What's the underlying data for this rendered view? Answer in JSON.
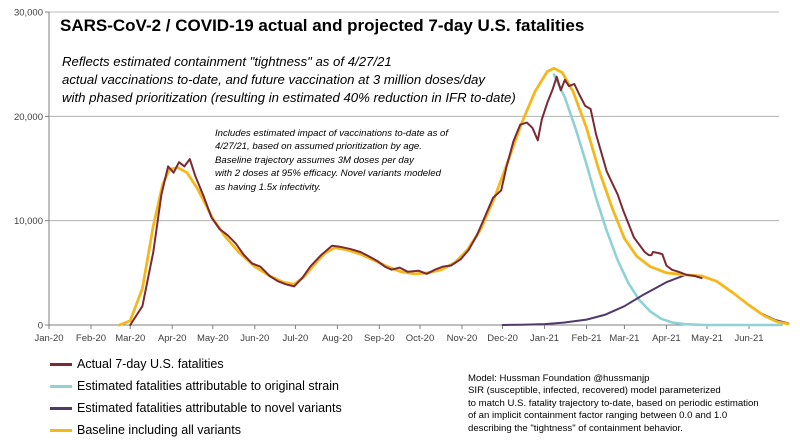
{
  "chart_data": {
    "type": "line",
    "title": "SARS-CoV-2 / COVID-19 actual and projected 7-day U.S. fatalities",
    "subtitle": "Reflects estimated containment \"tightness\" as of 4/27/21\nactual vaccinations to-date, and future vaccination at 3 million doses/day\nwith phased prioritization (resulting in estimated 40% reduction in IFR to-date)",
    "annotation": "Includes estimated impact of vaccinations to-date as of\n4/27/21,  based on assumed prioritization by age.\nBaseline trajectory assumes 3M doses per day\nwith 2 doses at 95% efficacy. Novel variants modeled\nas having 1.5x infectivity.",
    "model_note": "Model: Hussman Foundation @hussmanjp\nSIR (susceptible, infected, recovered) model parameterized\nto match U.S. fatality trajectory to-date,  based on periodic estimation\nof  an implicit containment factor ranging between 0.0 and 1.0\ndescribing the \"tightness\" of containment behavior.",
    "xlabel": "",
    "ylabel": "",
    "x_domain": [
      "2020-01",
      "2021-06"
    ],
    "x_ticks": [
      "Jan-20",
      "Feb-20",
      "Mar-20",
      "Apr-20",
      "May-20",
      "Jun-20",
      "Jul-20",
      "Aug-20",
      "Sep-20",
      "Oct-20",
      "Nov-20",
      "Dec-20",
      "Jan-21",
      "Feb-21",
      "Mar-21",
      "Apr-21",
      "May-21",
      "Jun-21"
    ],
    "y_ticks": [
      "0",
      "10,000",
      "20,000",
      "30,000"
    ],
    "ylim": [
      0,
      30000
    ],
    "grid": "horizontal",
    "legend_position": "bottom-left",
    "series": [
      {
        "name": "Actual 7-day U.S. fatalities",
        "color": "#7b2a33",
        "values": [
          [
            "2020-03-01",
            0
          ],
          [
            "2020-03-10",
            1800
          ],
          [
            "2020-03-18",
            7000
          ],
          [
            "2020-03-24",
            12500
          ],
          [
            "2020-03-29",
            15200
          ],
          [
            "2020-04-02",
            14600
          ],
          [
            "2020-04-06",
            15600
          ],
          [
            "2020-04-10",
            15200
          ],
          [
            "2020-04-14",
            15900
          ],
          [
            "2020-04-18",
            14300
          ],
          [
            "2020-04-24",
            12400
          ],
          [
            "2020-04-30",
            10300
          ],
          [
            "2020-05-06",
            9200
          ],
          [
            "2020-05-12",
            8600
          ],
          [
            "2020-05-18",
            7800
          ],
          [
            "2020-05-24",
            6700
          ],
          [
            "2020-05-30",
            5900
          ],
          [
            "2020-06-05",
            5600
          ],
          [
            "2020-06-12",
            4700
          ],
          [
            "2020-06-18",
            4200
          ],
          [
            "2020-06-24",
            3900
          ],
          [
            "2020-06-30",
            3700
          ],
          [
            "2020-07-06",
            4500
          ],
          [
            "2020-07-12",
            5600
          ],
          [
            "2020-07-20",
            6700
          ],
          [
            "2020-07-28",
            7600
          ],
          [
            "2020-08-03",
            7500
          ],
          [
            "2020-08-10",
            7300
          ],
          [
            "2020-08-18",
            7000
          ],
          [
            "2020-08-24",
            6600
          ],
          [
            "2020-08-31",
            6100
          ],
          [
            "2020-09-05",
            5600
          ],
          [
            "2020-09-10",
            5300
          ],
          [
            "2020-09-16",
            5500
          ],
          [
            "2020-09-22",
            5100
          ],
          [
            "2020-09-30",
            5200
          ],
          [
            "2020-10-06",
            4900
          ],
          [
            "2020-10-12",
            5300
          ],
          [
            "2020-10-18",
            5600
          ],
          [
            "2020-10-24",
            5700
          ],
          [
            "2020-10-31",
            6300
          ],
          [
            "2020-11-06",
            7200
          ],
          [
            "2020-11-12",
            8600
          ],
          [
            "2020-11-18",
            10400
          ],
          [
            "2020-11-24",
            12200
          ],
          [
            "2020-11-30",
            12900
          ],
          [
            "2020-12-04",
            15200
          ],
          [
            "2020-12-09",
            17600
          ],
          [
            "2020-12-14",
            19200
          ],
          [
            "2020-12-19",
            19400
          ],
          [
            "2020-12-23",
            18900
          ],
          [
            "2020-12-27",
            17700
          ],
          [
            "2020-12-30",
            19700
          ],
          [
            "2021-01-03",
            21300
          ],
          [
            "2021-01-07",
            22600
          ],
          [
            "2021-01-10",
            23800
          ],
          [
            "2021-01-13",
            22500
          ],
          [
            "2021-01-16",
            23500
          ],
          [
            "2021-01-19",
            22900
          ],
          [
            "2021-01-23",
            23100
          ],
          [
            "2021-01-27",
            22000
          ],
          [
            "2021-01-31",
            21000
          ],
          [
            "2021-02-04",
            20700
          ],
          [
            "2021-02-08",
            18300
          ],
          [
            "2021-02-12",
            16500
          ],
          [
            "2021-02-16",
            14700
          ],
          [
            "2021-02-20",
            13600
          ],
          [
            "2021-02-24",
            12500
          ],
          [
            "2021-02-28",
            11000
          ],
          [
            "2021-03-04",
            9700
          ],
          [
            "2021-03-08",
            8400
          ],
          [
            "2021-03-12",
            7700
          ],
          [
            "2021-03-16",
            7000
          ],
          [
            "2021-03-19",
            6700
          ],
          [
            "2021-03-21",
            6700
          ],
          [
            "2021-03-22",
            7000
          ],
          [
            "2021-03-26",
            6900
          ],
          [
            "2021-03-29",
            6800
          ],
          [
            "2021-04-01",
            5700
          ],
          [
            "2021-04-05",
            5300
          ],
          [
            "2021-04-10",
            5100
          ],
          [
            "2021-04-16",
            4800
          ],
          [
            "2021-04-22",
            4700
          ],
          [
            "2021-04-27",
            4500
          ]
        ]
      },
      {
        "name": "Estimated fatalities attributable to original strain",
        "color": "#8fd2d6",
        "values": [
          [
            "2021-01-08",
            24000
          ],
          [
            "2021-01-16",
            21800
          ],
          [
            "2021-01-24",
            18800
          ],
          [
            "2021-02-01",
            15400
          ],
          [
            "2021-02-08",
            12200
          ],
          [
            "2021-02-16",
            9000
          ],
          [
            "2021-02-24",
            6200
          ],
          [
            "2021-03-04",
            4000
          ],
          [
            "2021-03-12",
            2400
          ],
          [
            "2021-03-20",
            1300
          ],
          [
            "2021-03-28",
            600
          ],
          [
            "2021-04-05",
            250
          ],
          [
            "2021-04-15",
            80
          ],
          [
            "2021-04-30",
            0
          ],
          [
            "2021-06-25",
            0
          ]
        ]
      },
      {
        "name": "Estimated fatalities attributable to novel variants",
        "color": "#4f3a68",
        "values": [
          [
            "2020-12-01",
            0
          ],
          [
            "2020-12-15",
            30
          ],
          [
            "2021-01-01",
            90
          ],
          [
            "2021-01-15",
            230
          ],
          [
            "2021-02-01",
            520
          ],
          [
            "2021-02-15",
            1000
          ],
          [
            "2021-03-01",
            1800
          ],
          [
            "2021-03-15",
            2900
          ],
          [
            "2021-04-01",
            4100
          ],
          [
            "2021-04-15",
            4800
          ],
          [
            "2021-04-27",
            4700
          ],
          [
            "2021-05-08",
            4200
          ],
          [
            "2021-05-20",
            3100
          ],
          [
            "2021-06-01",
            1900
          ],
          [
            "2021-06-10",
            1100
          ],
          [
            "2021-06-20",
            500
          ],
          [
            "2021-06-30",
            150
          ]
        ]
      },
      {
        "name": "Baseline including all variants",
        "color": "#f5b81c",
        "values": [
          [
            "2020-02-22",
            0
          ],
          [
            "2020-03-01",
            400
          ],
          [
            "2020-03-10",
            3500
          ],
          [
            "2020-03-18",
            9500
          ],
          [
            "2020-03-25",
            13500
          ],
          [
            "2020-03-30",
            14900
          ],
          [
            "2020-04-05",
            15100
          ],
          [
            "2020-04-12",
            14600
          ],
          [
            "2020-04-20",
            13000
          ],
          [
            "2020-05-01",
            10200
          ],
          [
            "2020-05-10",
            8500
          ],
          [
            "2020-05-20",
            7000
          ],
          [
            "2020-06-01",
            5600
          ],
          [
            "2020-06-12",
            4700
          ],
          [
            "2020-06-22",
            4100
          ],
          [
            "2020-06-30",
            3900
          ],
          [
            "2020-07-08",
            4700
          ],
          [
            "2020-07-15",
            5800
          ],
          [
            "2020-07-23",
            6900
          ],
          [
            "2020-07-30",
            7400
          ],
          [
            "2020-08-08",
            7200
          ],
          [
            "2020-08-18",
            6800
          ],
          [
            "2020-08-28",
            6200
          ],
          [
            "2020-09-07",
            5600
          ],
          [
            "2020-09-17",
            5100
          ],
          [
            "2020-09-27",
            4900
          ],
          [
            "2020-10-07",
            5000
          ],
          [
            "2020-10-17",
            5300
          ],
          [
            "2020-10-27",
            6000
          ],
          [
            "2020-11-05",
            7200
          ],
          [
            "2020-11-15",
            9200
          ],
          [
            "2020-11-25",
            12200
          ],
          [
            "2020-12-05",
            15700
          ],
          [
            "2020-12-15",
            19300
          ],
          [
            "2020-12-25",
            22400
          ],
          [
            "2021-01-03",
            24300
          ],
          [
            "2021-01-08",
            24600
          ],
          [
            "2021-01-14",
            24200
          ],
          [
            "2021-01-22",
            22400
          ],
          [
            "2021-02-01",
            18900
          ],
          [
            "2021-02-10",
            14900
          ],
          [
            "2021-02-20",
            11200
          ],
          [
            "2021-03-01",
            8300
          ],
          [
            "2021-03-10",
            6600
          ],
          [
            "2021-03-20",
            5600
          ],
          [
            "2021-04-01",
            5000
          ],
          [
            "2021-04-15",
            4800
          ],
          [
            "2021-04-27",
            4700
          ],
          [
            "2021-05-08",
            4200
          ],
          [
            "2021-05-20",
            3100
          ],
          [
            "2021-06-01",
            1900
          ],
          [
            "2021-06-12",
            900
          ],
          [
            "2021-06-22",
            300
          ],
          [
            "2021-06-30",
            100
          ]
        ]
      }
    ]
  }
}
